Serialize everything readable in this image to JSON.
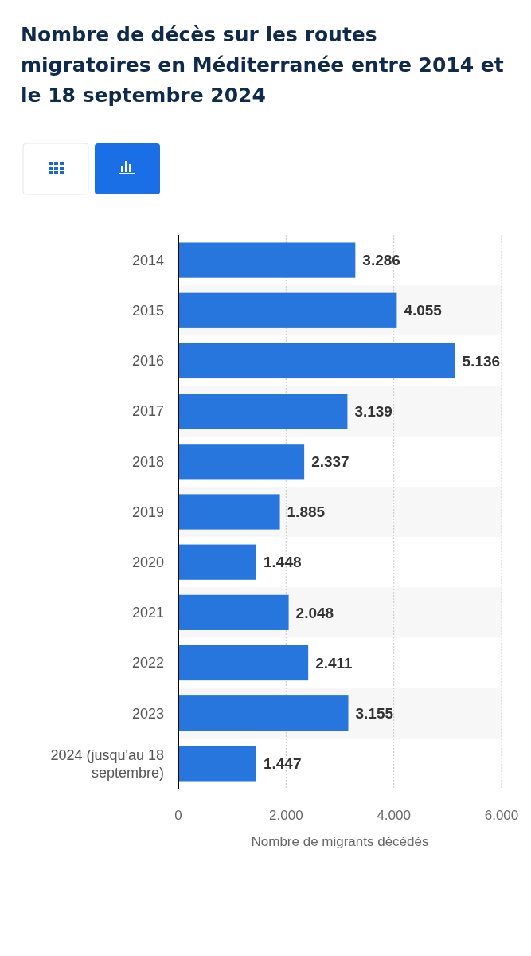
{
  "chart_data": {
    "type": "bar",
    "orientation": "horizontal",
    "title": "Nombre de décès sur les routes migratoires en Méditerranée entre 2014 et le 18 septembre 2024",
    "categories": [
      "2014",
      "2015",
      "2016",
      "2017",
      "2018",
      "2019",
      "2020",
      "2021",
      "2022",
      "2023",
      "2024 (jusqu'au 18 septembre)"
    ],
    "values": [
      3286,
      4055,
      5136,
      3139,
      2337,
      1885,
      1448,
      2048,
      2411,
      3155,
      1447
    ],
    "color": "#2776dd",
    "xlim": [
      0,
      6000
    ],
    "xticks": [
      0,
      {
        "value": 2000,
        "label": "2.000"
      },
      {
        "value": 4000,
        "label": "4.000"
      },
      {
        "value": 6000,
        "label": "6.000"
      }
    ],
    "xlabel": "Nombre de migrants décédés",
    "value_labels": [
      "3.286",
      "4.055",
      "5.136",
      "3.139",
      "2.337",
      "1.885",
      "1.448",
      "2.048",
      "2.411",
      "3.155",
      "1.447"
    ],
    "grid": "x"
  }
}
